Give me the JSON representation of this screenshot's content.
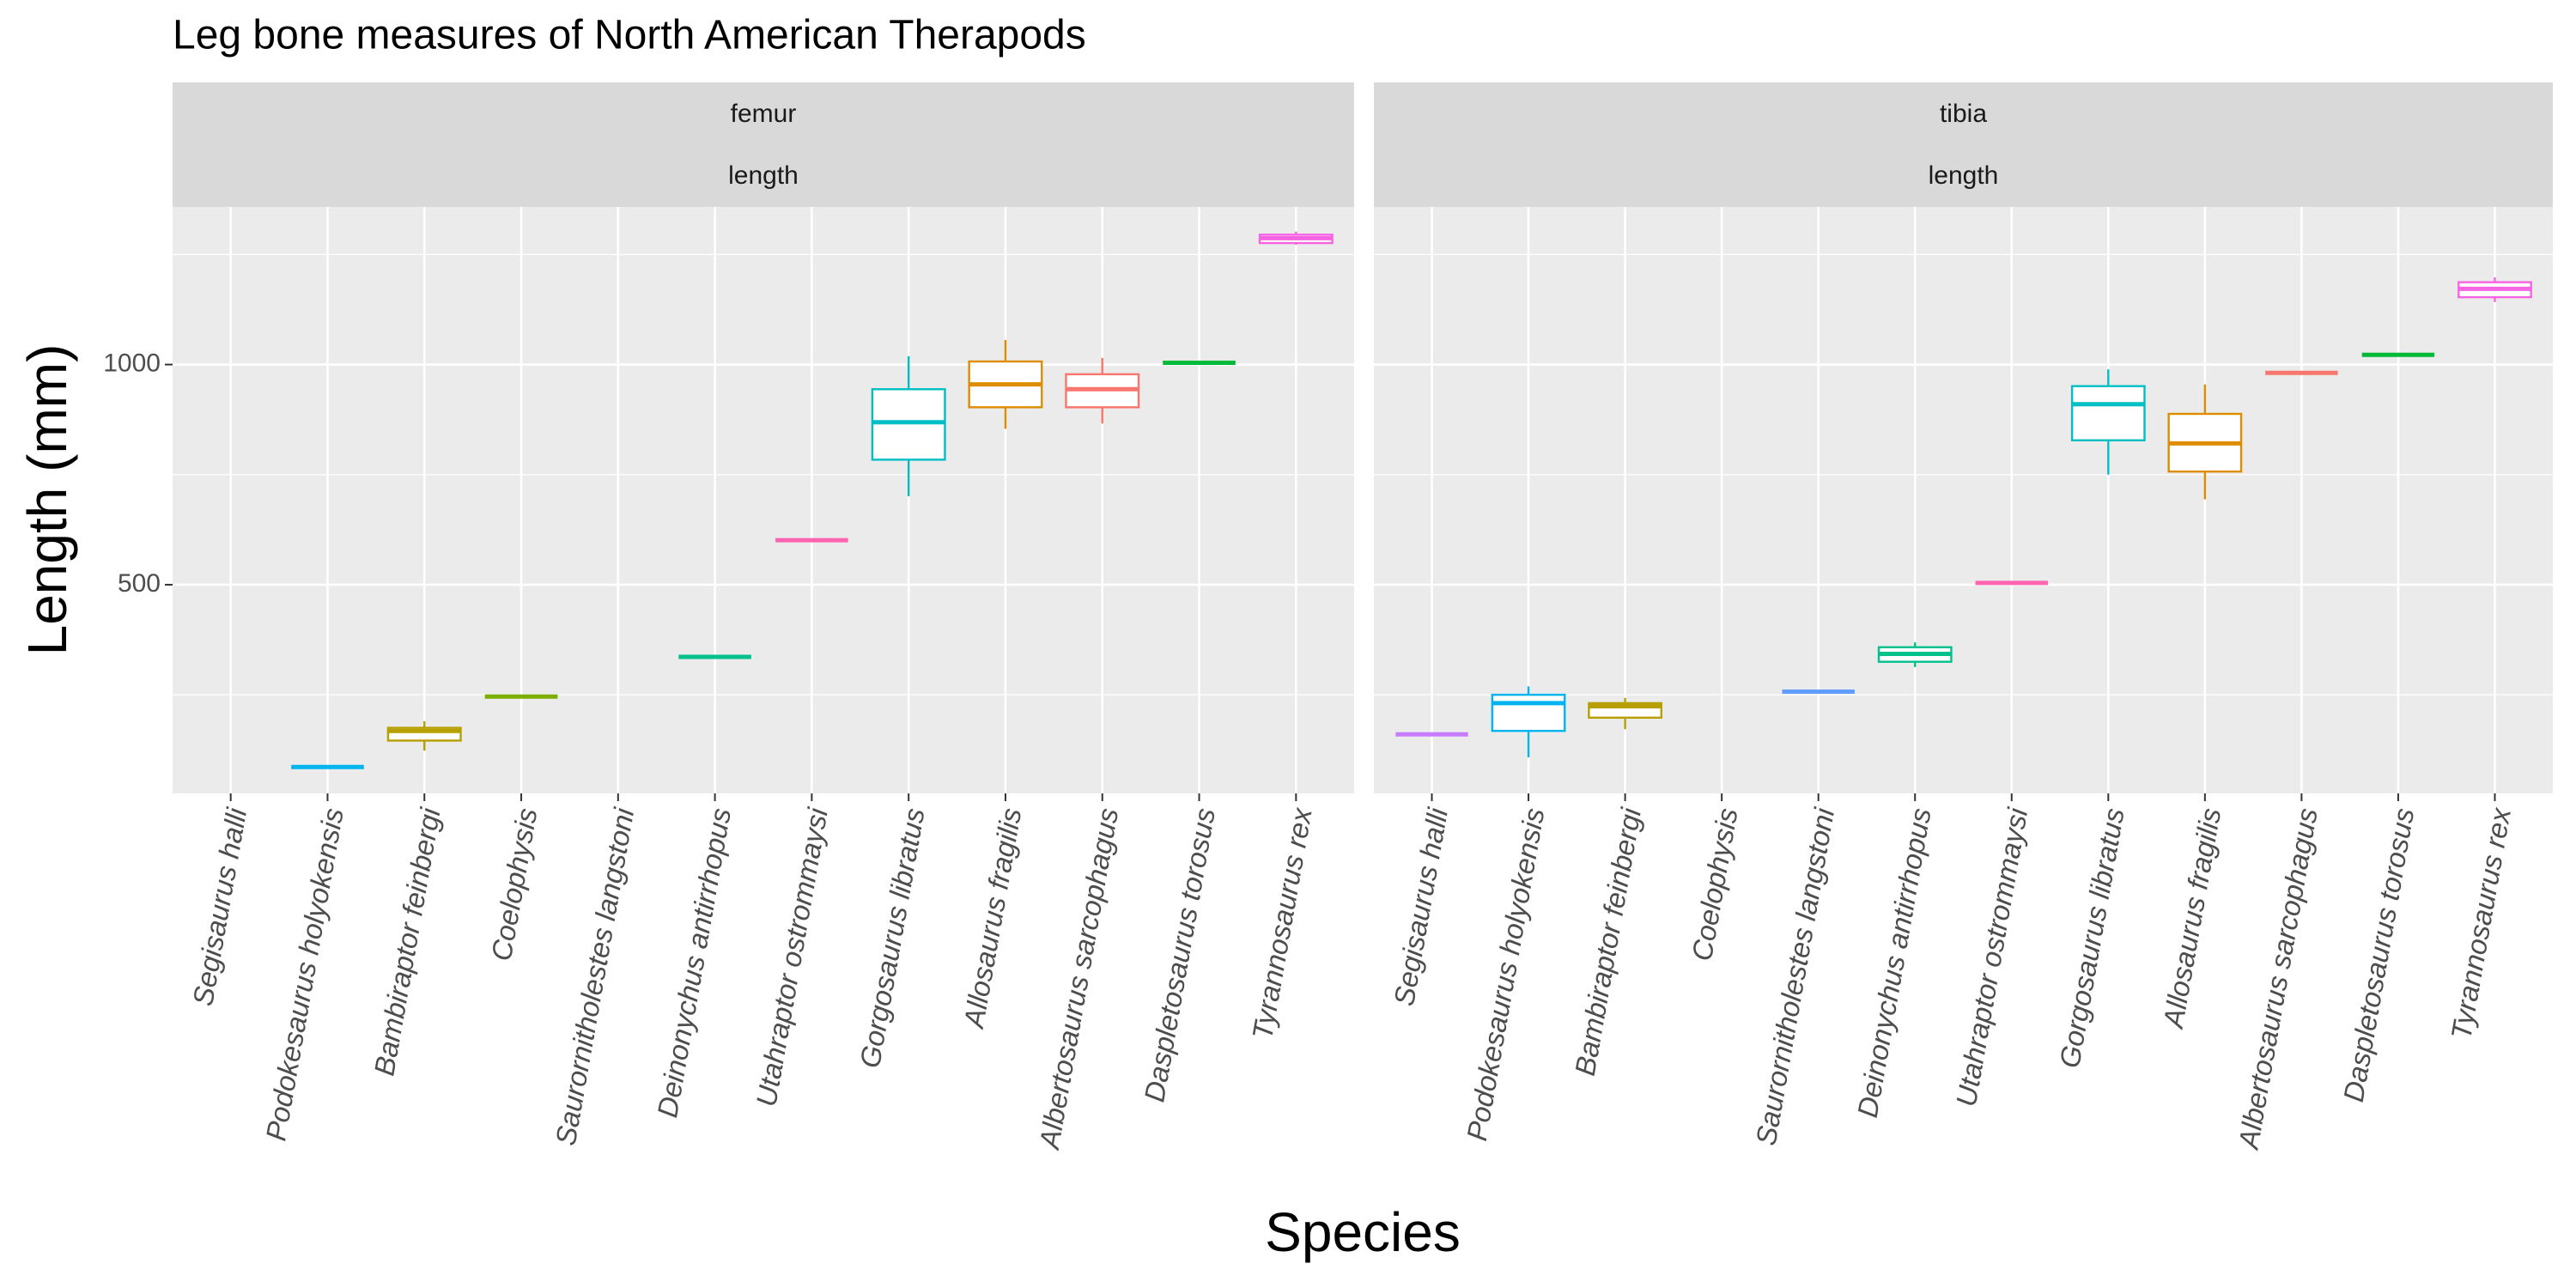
{
  "chart_data": {
    "type": "box",
    "title": "Leg bone measures of North American Therapods",
    "x_label": "Species",
    "y_label": "Length (mm)",
    "categories": [
      "Segisaurus halli",
      "Podokesaurus holyokensis",
      "Bambiraptor feinbergi",
      "Coelophysis",
      "Saurornitholestes langstoni",
      "Deinonychus antirrhopus",
      "Utahraptor ostrommaysi",
      "Gorgosaurus libratus",
      "Allosaurus fragilis",
      "Albertosaurus sarcophagus",
      "Daspletosaurus torosus",
      "Tyrannosaurus rex"
    ],
    "colors": [
      "#C77CFF",
      "#00B4F0",
      "#B79F00",
      "#7CAE00",
      "#619CFF",
      "#00C08B",
      "#FF64B0",
      "#00BFC4",
      "#DE8C00",
      "#F8766D",
      "#00BA38",
      "#F564E3"
    ],
    "ylim": [
      26,
      1358
    ],
    "yticks": [
      500,
      1000
    ],
    "minor_grid": [
      250,
      750,
      1250
    ],
    "grid": true,
    "panels": [
      {
        "strip": [
          "femur",
          "length"
        ],
        "min": [
          null,
          86,
          123,
          246,
          null,
          336,
          601,
          701,
          854,
          866,
          1004,
          1272
        ],
        "q1": [
          null,
          86,
          146,
          246,
          null,
          336,
          601,
          784,
          903,
          903,
          1004,
          1276
        ],
        "median": [
          null,
          86,
          168,
          246,
          null,
          336,
          601,
          869,
          955,
          944,
          1004,
          1287
        ],
        "q3": [
          null,
          86,
          175,
          246,
          null,
          336,
          601,
          944,
          1007,
          978,
          1004,
          1295
        ],
        "max": [
          null,
          86,
          190,
          246,
          null,
          336,
          601,
          1019,
          1056,
          1015,
          1004,
          1302
        ]
      },
      {
        "strip": [
          "tibia",
          "length"
        ],
        "min": [
          160,
          108,
          172,
          null,
          257,
          313,
          504,
          750,
          694,
          981,
          1022,
          1142
        ],
        "q1": [
          160,
          168,
          198,
          null,
          257,
          325,
          504,
          828,
          757,
          981,
          1022,
          1153
        ],
        "median": [
          160,
          231,
          224,
          null,
          257,
          343,
          504,
          910,
          821,
          981,
          1022,
          1172
        ],
        "q3": [
          160,
          250,
          231,
          null,
          257,
          358,
          504,
          951,
          888,
          981,
          1022,
          1187
        ],
        "max": [
          160,
          269,
          243,
          null,
          257,
          369,
          504,
          989,
          955,
          981,
          1022,
          1198
        ]
      }
    ]
  }
}
